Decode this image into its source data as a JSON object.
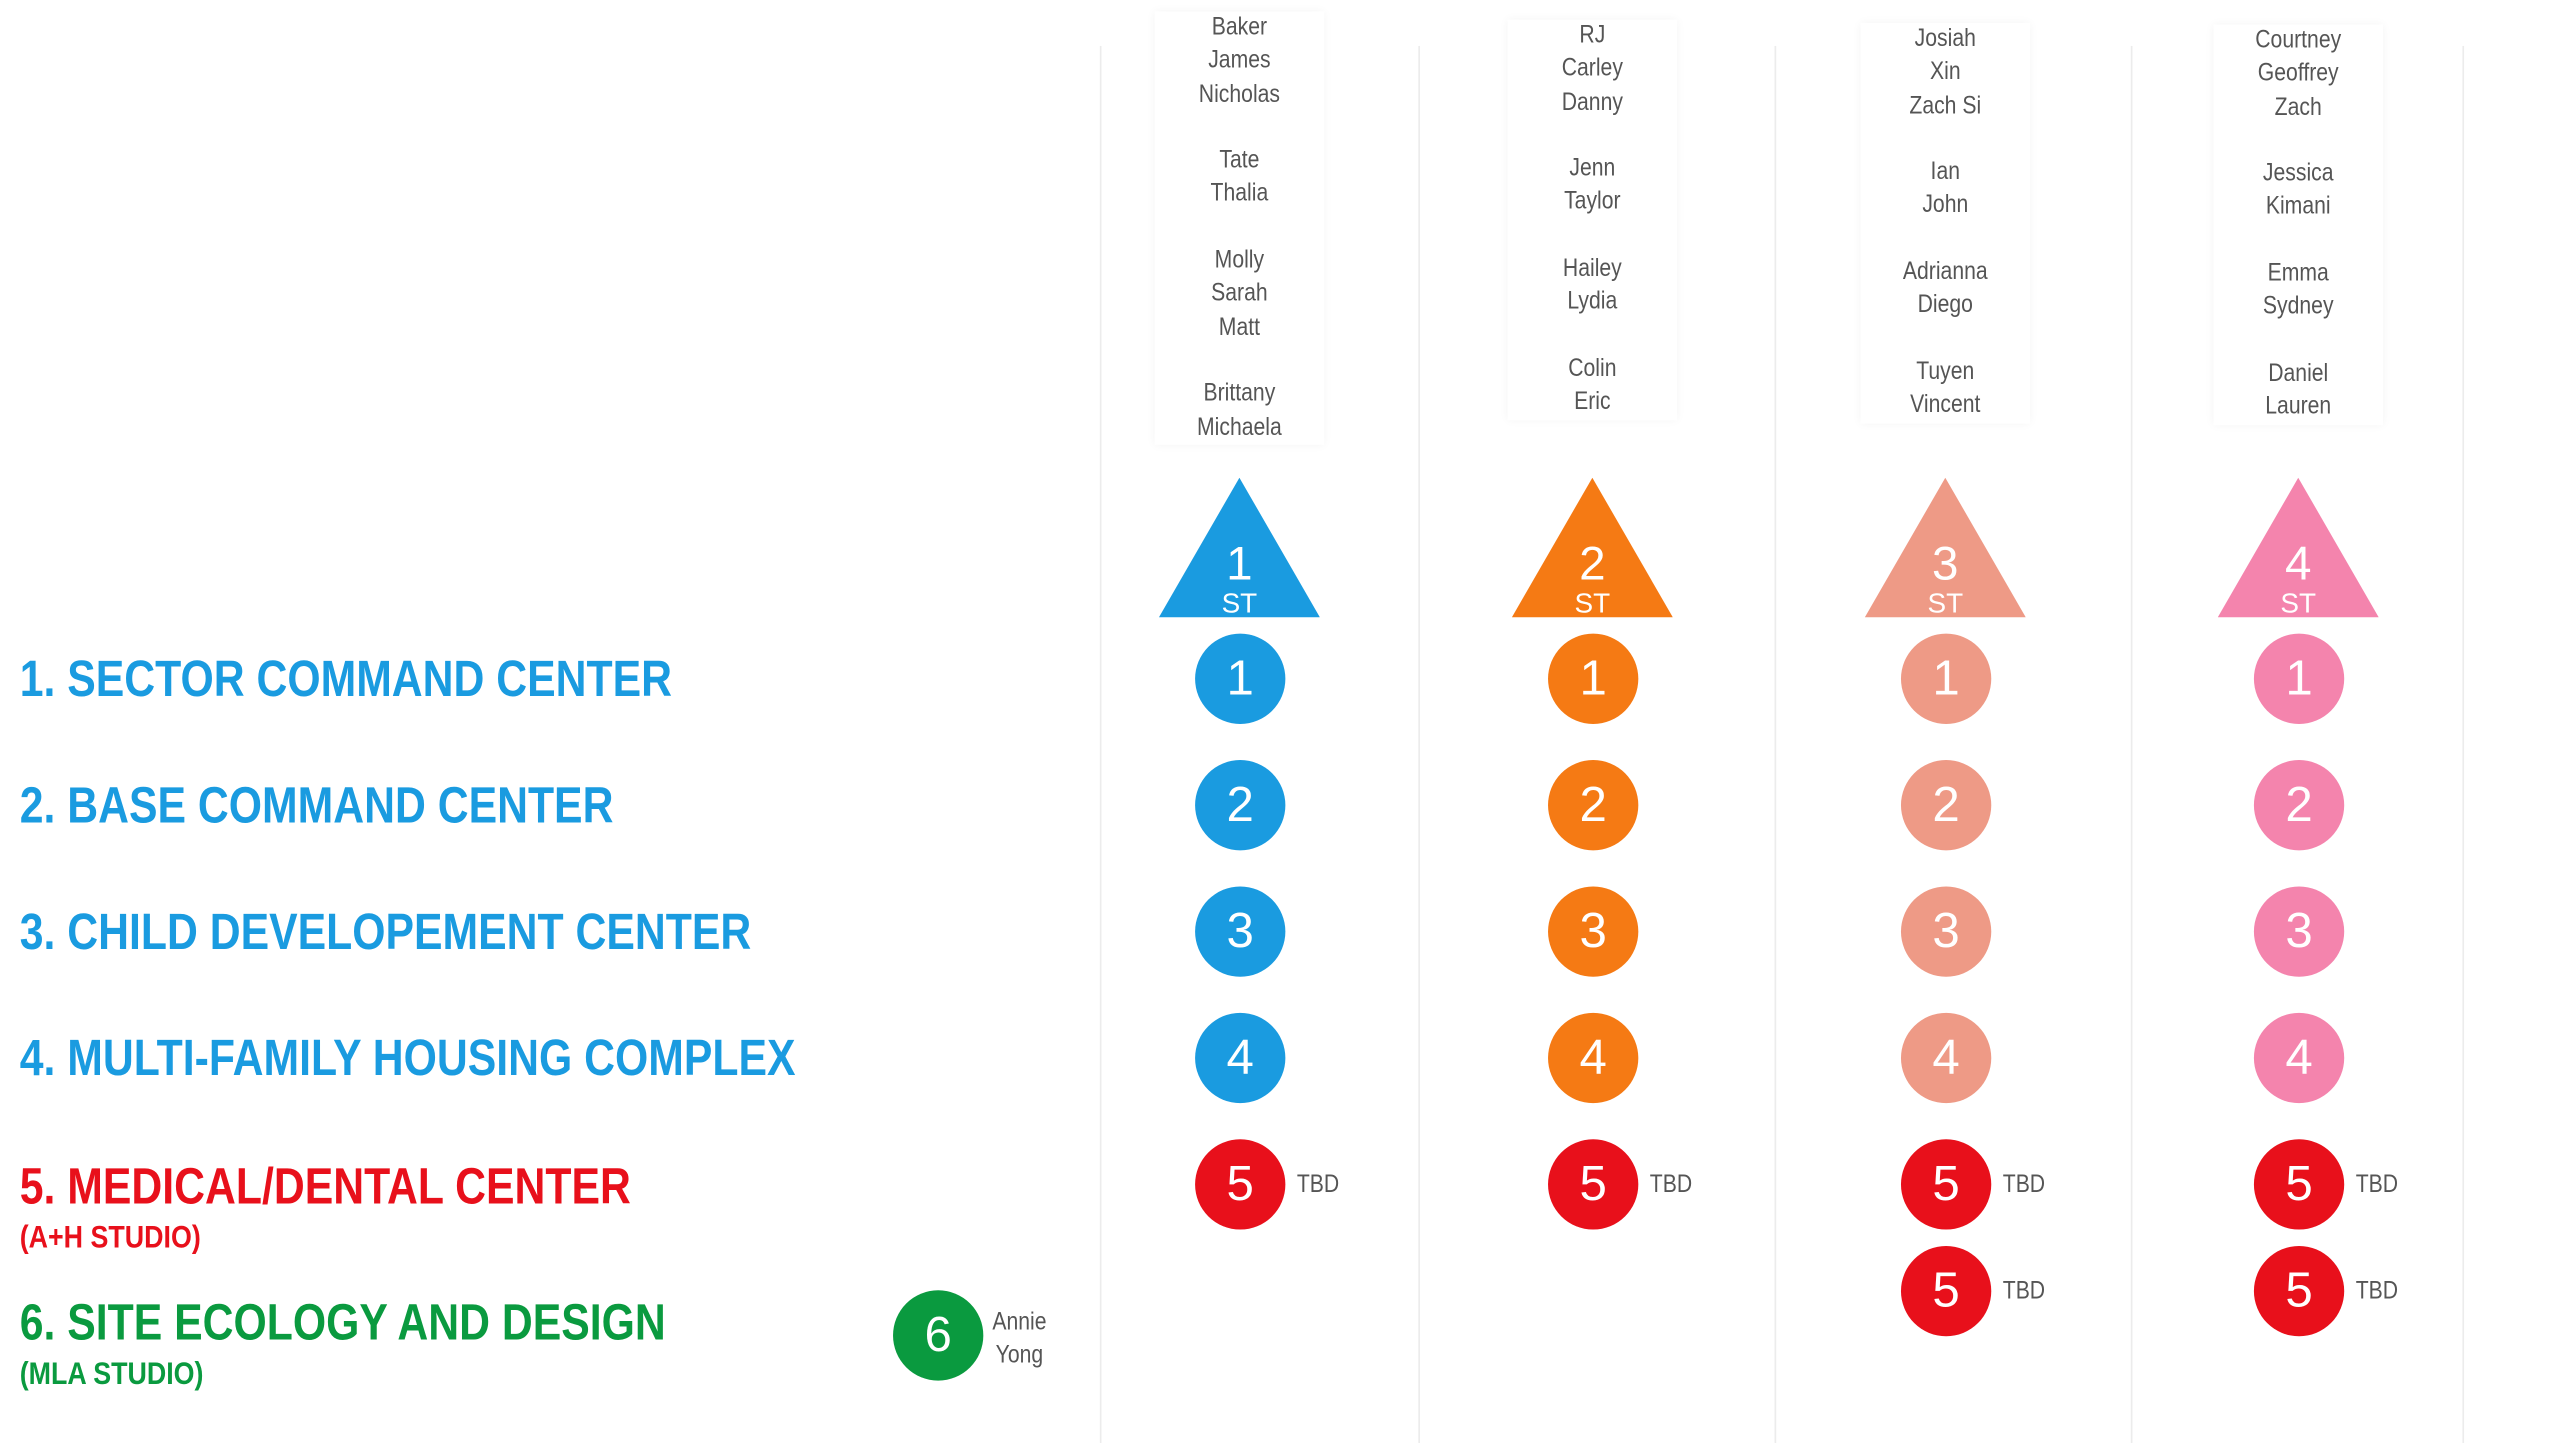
{
  "columns": [
    {
      "color": "#1a9be0",
      "tri_number": "1",
      "tri_suffix": "ST",
      "names": [
        "Baker",
        "James",
        "Nicholas",
        "",
        "Tate",
        "Thalia",
        "",
        "Molly",
        "Sarah",
        "Matt",
        "",
        "Brittany",
        "Michaela"
      ],
      "circles": [
        "1",
        "2",
        "3",
        "4"
      ],
      "fives": [
        "5"
      ],
      "tbd": "TBD"
    },
    {
      "color": "#f57a14",
      "tri_number": "2",
      "tri_suffix": "ST",
      "names": [
        "RJ",
        "Carley",
        "Danny",
        "",
        "Jenn",
        "Taylor",
        "",
        "Hailey",
        "Lydia",
        "",
        "Colin",
        "Eric"
      ],
      "circles": [
        "1",
        "2",
        "3",
        "4"
      ],
      "fives": [
        "5"
      ],
      "tbd": "TBD"
    },
    {
      "color": "#ee9a86",
      "tri_number": "3",
      "tri_suffix": "ST",
      "names": [
        "Josiah",
        "Xin",
        "Zach Si",
        "",
        "Ian",
        "John",
        "",
        "Adrianna",
        "Diego",
        "",
        "Tuyen",
        "Vincent"
      ],
      "circles": [
        "1",
        "2",
        "3",
        "4"
      ],
      "fives": [
        "5",
        "5"
      ],
      "tbd": "TBD"
    },
    {
      "color": "#f484ad",
      "tri_number": "4",
      "tri_suffix": "ST",
      "names": [
        "Courtney",
        "Geoffrey",
        "Zach",
        "",
        "Jessica",
        "Kimani",
        "",
        "Emma",
        "Sydney",
        "",
        "Daniel",
        "Lauren"
      ],
      "circles": [
        "1",
        "2",
        "3",
        "4"
      ],
      "fives": [
        "5",
        "5"
      ],
      "tbd": "TBD"
    }
  ],
  "projects": [
    {
      "label": "1. SECTOR COMMAND CENTER",
      "color": "#1a9be0"
    },
    {
      "label": "2. BASE COMMAND CENTER",
      "color": "#1a9be0"
    },
    {
      "label": "3. CHILD DEVELOPEMENT CENTER",
      "color": "#1a9be0"
    },
    {
      "label": "4. MULTI-FAMILY HOUSING COMPLEX",
      "color": "#1a9be0"
    },
    {
      "label": "5. MEDICAL/DENTAL CENTER",
      "sub": "(A+H STUDIO)",
      "color": "#e8101b"
    },
    {
      "label": "6. SITE ECOLOGY AND DESIGN",
      "sub": "(MLA STUDIO)",
      "color": "#0a9a3f"
    }
  ],
  "site_ecology": {
    "number": "6",
    "color": "#0a9a3f",
    "names": [
      "Annie",
      "Yong"
    ]
  },
  "medical_color": "#e8101b"
}
